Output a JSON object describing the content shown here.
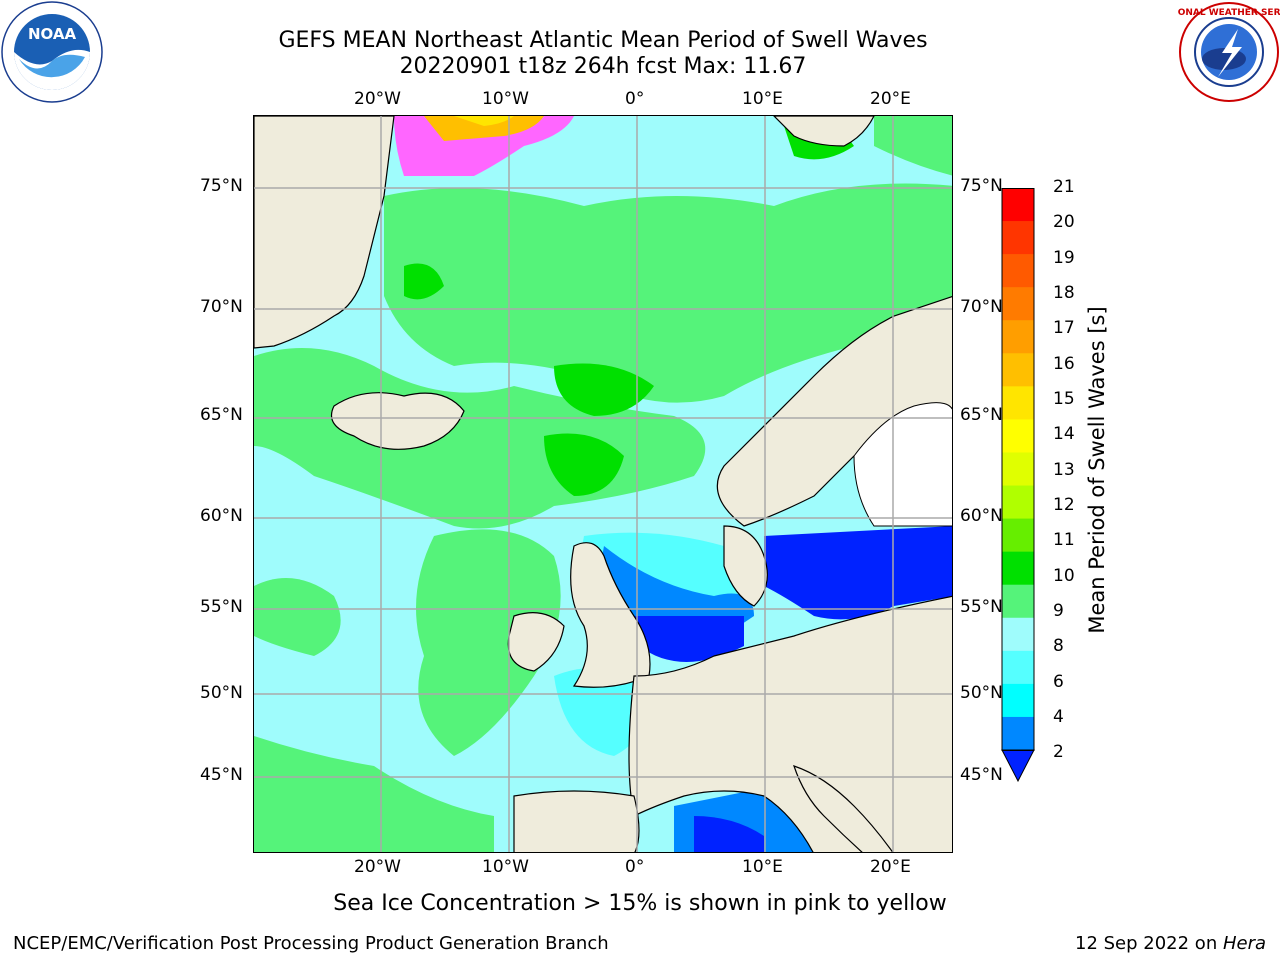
{
  "header": {
    "title_line1": "GEFS MEAN Northeast Atlantic Mean Period of Swell Waves",
    "title_line2": "20220901 t18z 264h fcst   Max: 11.67"
  },
  "logos": {
    "left": "noara-logo",
    "left_text": "NOAA",
    "right": "nws-logo",
    "right_text": "NATIONAL WEATHER SERVICE"
  },
  "map": {
    "lon_ticks_top": [
      "20°W",
      "10°W",
      "0°",
      "10°E",
      "20°E"
    ],
    "lon_ticks_bottom": [
      "20°W",
      "10°W",
      "0°",
      "10°E",
      "20°E"
    ],
    "lat_ticks_left": [
      "75°N",
      "70°N",
      "65°N",
      "60°N",
      "55°N",
      "50°N",
      "45°N"
    ],
    "lat_ticks_right": [
      "75°N",
      "70°N",
      "65°N",
      "60°N",
      "55°N",
      "50°N",
      "45°N"
    ],
    "land_color": "#efecdc",
    "ocean_base_color": "#9ffcfc"
  },
  "colorbar": {
    "title": "Mean Period of Swell Waves [s]",
    "ticks": [
      "21",
      "20",
      "19",
      "18",
      "17",
      "16",
      "15",
      "14",
      "13",
      "12",
      "11",
      "10",
      "9",
      "8",
      "6",
      "4",
      "2"
    ],
    "colors": [
      "#ff0000",
      "#ff3500",
      "#ff5a00",
      "#ff7b00",
      "#ff9e00",
      "#ffbf00",
      "#ffe500",
      "#ffff00",
      "#e0ff00",
      "#b0ff00",
      "#66ee00",
      "#00e000",
      "#55f37a",
      "#9ffcfc",
      "#55ffff",
      "#00ffff",
      "#0088ff",
      "#0022ff"
    ]
  },
  "footer": {
    "note": "Sea Ice Concentration > 15% is shown in pink to yellow",
    "credit": "NCEP/EMC/Verification Post Processing Product Generation Branch",
    "run_date": "12 Sep 2022 on ",
    "host": "Hera"
  }
}
